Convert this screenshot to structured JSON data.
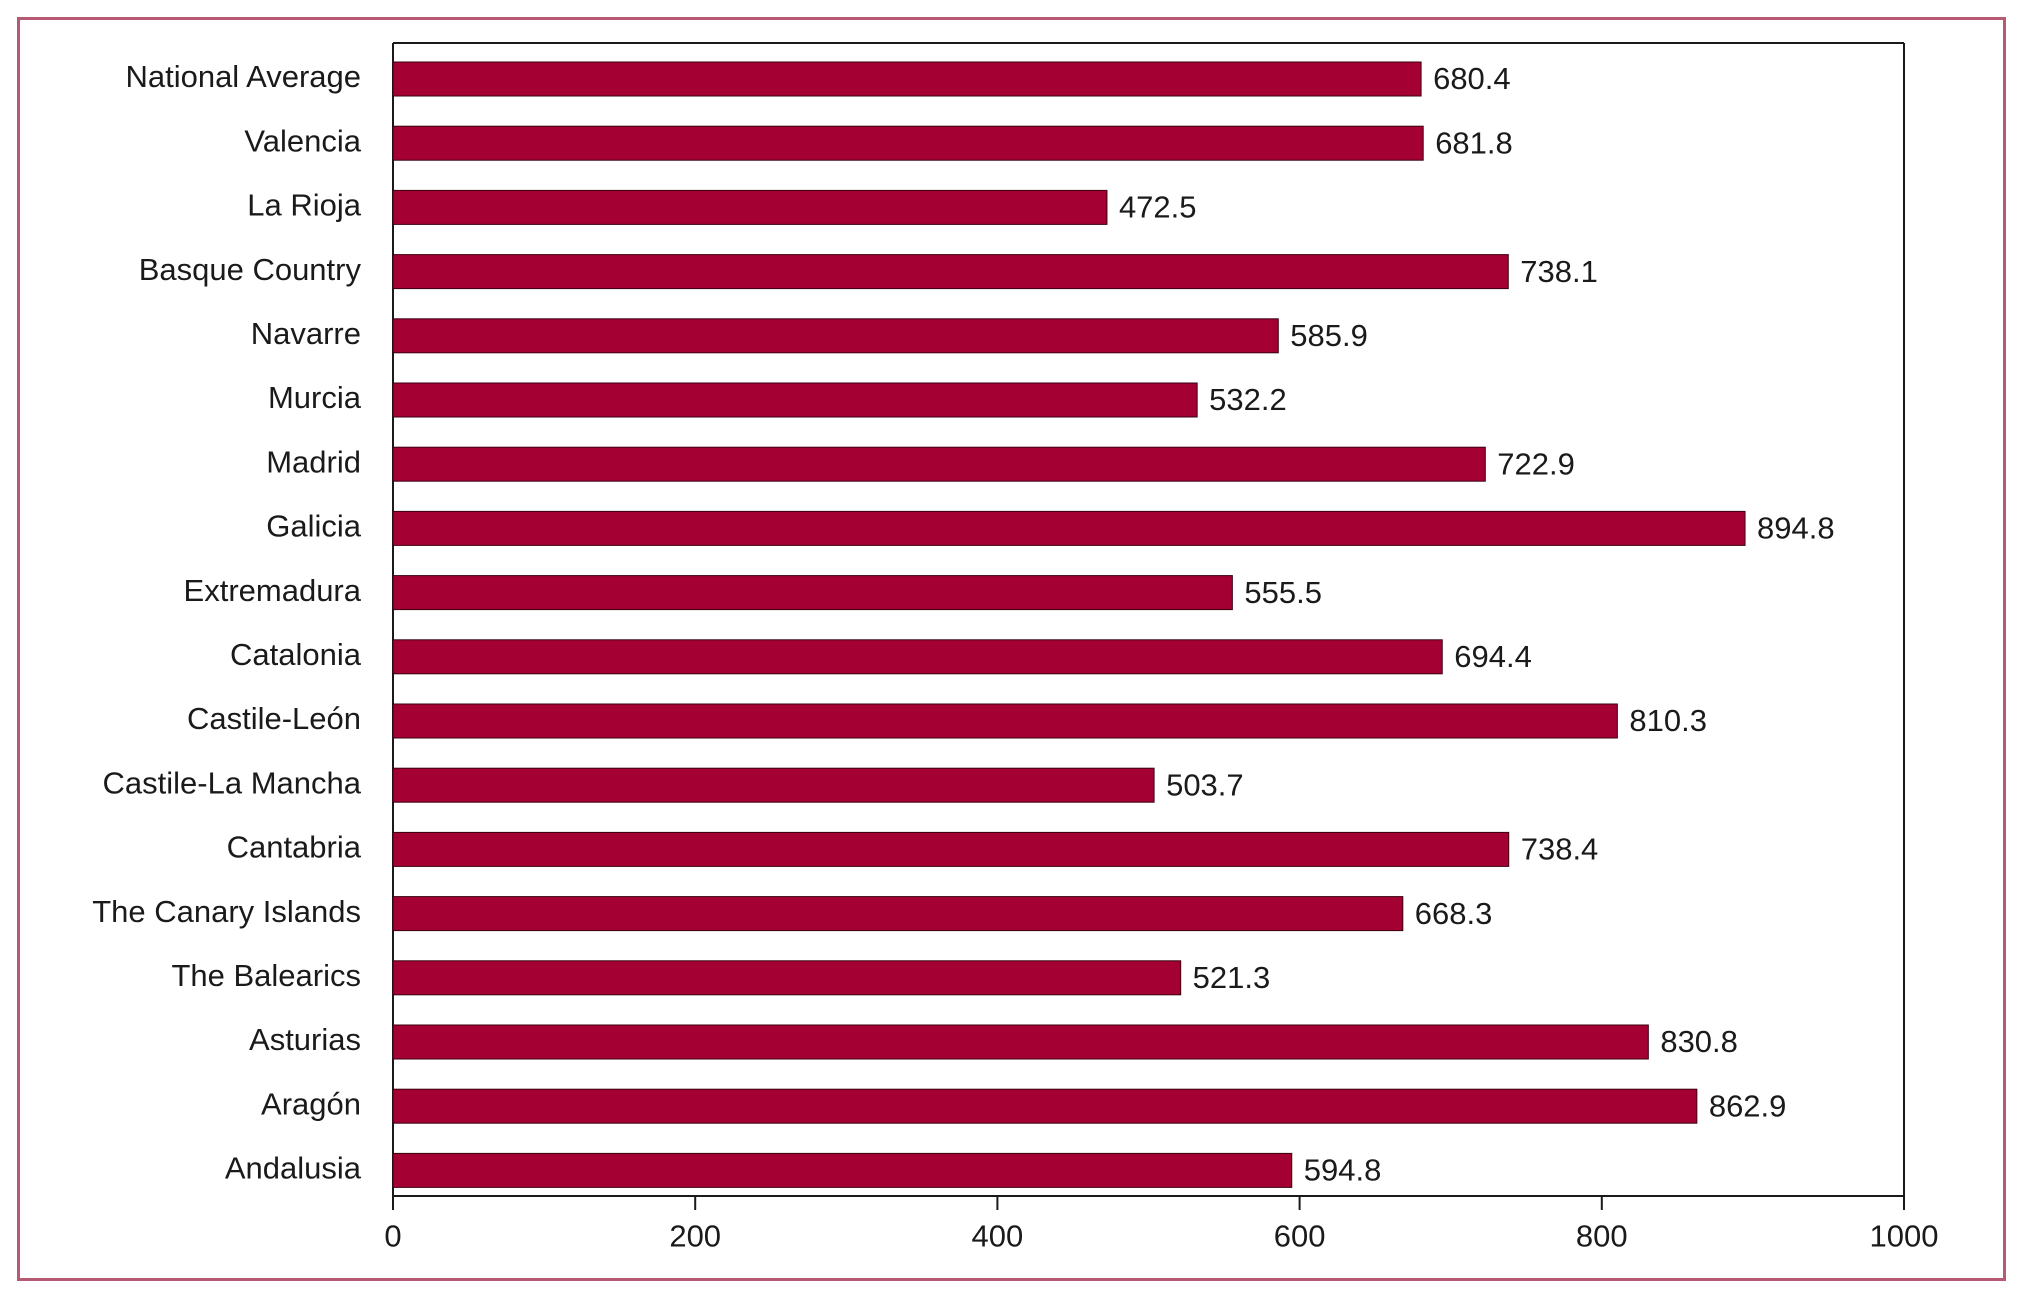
{
  "colors": {
    "bar": "#a50034",
    "frame": "#b55a72",
    "axis": "#1a1a1a"
  },
  "chart_data": {
    "type": "bar",
    "orientation": "horizontal",
    "title": "",
    "xlabel": "",
    "ylabel": "",
    "xlim": [
      0,
      1000
    ],
    "xticks": [
      0,
      200,
      400,
      600,
      800,
      1000
    ],
    "grid": false,
    "legend": "none",
    "categories": [
      "National Average",
      "Valencia",
      "La Rioja",
      "Basque Country",
      "Navarre",
      "Murcia",
      "Madrid",
      "Galicia",
      "Extremadura",
      "Catalonia",
      "Castile-León",
      "Castile-La Mancha",
      "Cantabria",
      "The Canary Islands",
      "The Balearics",
      "Asturias",
      "Aragón",
      "Andalusia"
    ],
    "values": [
      680.4,
      681.8,
      472.5,
      738.1,
      585.9,
      532.2,
      722.9,
      894.8,
      555.5,
      694.4,
      810.3,
      503.7,
      738.4,
      668.3,
      521.3,
      830.8,
      862.9,
      594.8
    ],
    "value_labels": [
      "680.4",
      "681.8",
      "472.5",
      "738.1",
      "585.9",
      "532.2",
      "722.9",
      "894.8",
      "555.5",
      "694.4",
      "810.3",
      "503.7",
      "738.4",
      "668.3",
      "521.3",
      "830.8",
      "862.9",
      "594.8"
    ]
  }
}
